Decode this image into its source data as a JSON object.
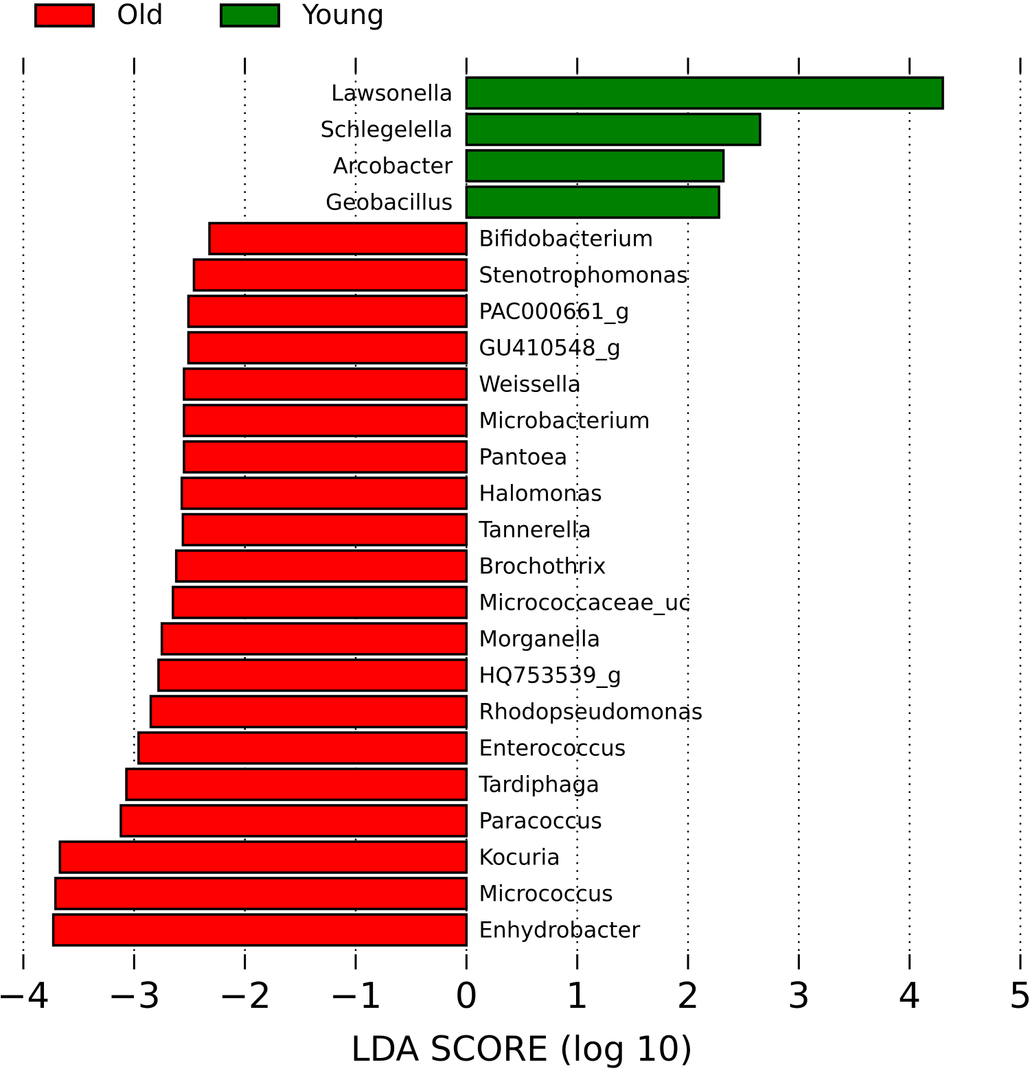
{
  "legend": {
    "items": [
      {
        "label": "Old",
        "color": "#ff0000"
      },
      {
        "label": "Young",
        "color": "#008000"
      }
    ]
  },
  "chart_data": {
    "type": "bar",
    "orientation": "horizontal",
    "title": "",
    "xlabel": "LDA SCORE (log 10)",
    "ylabel": "",
    "xlim": [
      -4,
      5
    ],
    "xticks": [
      -4,
      -3,
      -2,
      -1,
      0,
      1,
      2,
      3,
      4,
      5
    ],
    "xtick_labels": [
      "−4",
      "−3",
      "−2",
      "−1",
      "0",
      "1",
      "2",
      "3",
      "4",
      "5"
    ],
    "grid": "dotted-vertical",
    "legend_position": "top-left",
    "groups": [
      {
        "name": "Old",
        "color": "#ff0000"
      },
      {
        "name": "Young",
        "color": "#008000"
      }
    ],
    "bars": [
      {
        "label": "Lawsonella",
        "group": "Young",
        "value": 4.3
      },
      {
        "label": "Schlegelella",
        "group": "Young",
        "value": 2.65
      },
      {
        "label": "Arcobacter",
        "group": "Young",
        "value": 2.32
      },
      {
        "label": "Geobacillus",
        "group": "Young",
        "value": 2.28
      },
      {
        "label": "Bifidobacterium",
        "group": "Old",
        "value": -2.32
      },
      {
        "label": "Stenotrophomonas",
        "group": "Old",
        "value": -2.46
      },
      {
        "label": "PAC000661_g",
        "group": "Old",
        "value": -2.51
      },
      {
        "label": "GU410548_g",
        "group": "Old",
        "value": -2.51
      },
      {
        "label": "Weissella",
        "group": "Old",
        "value": -2.55
      },
      {
        "label": "Microbacterium",
        "group": "Old",
        "value": -2.55
      },
      {
        "label": "Pantoea",
        "group": "Old",
        "value": -2.55
      },
      {
        "label": "Halomonas",
        "group": "Old",
        "value": -2.57
      },
      {
        "label": "Tannerella",
        "group": "Old",
        "value": -2.56
      },
      {
        "label": "Brochothrix",
        "group": "Old",
        "value": -2.62
      },
      {
        "label": "Micrococcaceae_uc",
        "group": "Old",
        "value": -2.65
      },
      {
        "label": "Morganella",
        "group": "Old",
        "value": -2.75
      },
      {
        "label": "HQ753539_g",
        "group": "Old",
        "value": -2.78
      },
      {
        "label": "Rhodopseudomonas",
        "group": "Old",
        "value": -2.85
      },
      {
        "label": "Enterococcus",
        "group": "Old",
        "value": -2.96
      },
      {
        "label": "Tardiphaga",
        "group": "Old",
        "value": -3.07
      },
      {
        "label": "Paracoccus",
        "group": "Old",
        "value": -3.12
      },
      {
        "label": "Kocuria",
        "group": "Old",
        "value": -3.67
      },
      {
        "label": "Micrococcus",
        "group": "Old",
        "value": -3.71
      },
      {
        "label": "Enhydrobacter",
        "group": "Old",
        "value": -3.73
      }
    ]
  }
}
